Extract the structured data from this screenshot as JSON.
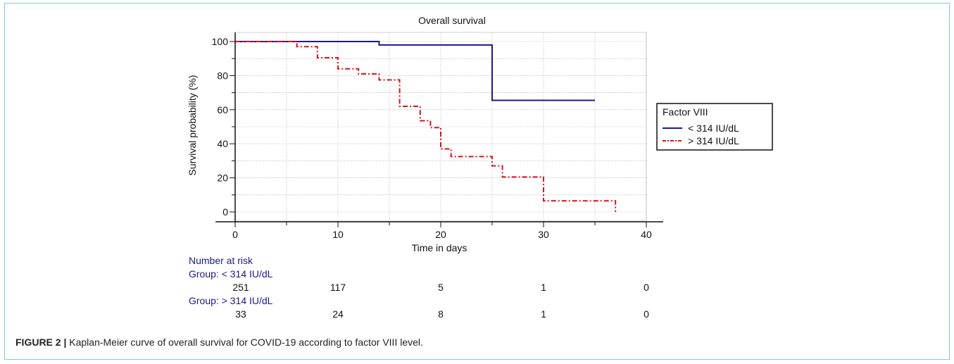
{
  "chart_data": {
    "type": "line",
    "step": true,
    "title": "Overall survival",
    "xlabel": "Time in days",
    "ylabel": "Survival probability (%)",
    "xlim": [
      0,
      40
    ],
    "ylim": [
      0,
      100
    ],
    "xticks": [
      "0",
      "10",
      "20",
      "30",
      "40"
    ],
    "yticks": [
      "0",
      "20",
      "40",
      "60",
      "80",
      "100"
    ],
    "grid": true,
    "legend": {
      "title": "Factor VIII",
      "position": "right"
    },
    "series": [
      {
        "name": "< 314 IU/dL",
        "color": "#1a1a8c",
        "style": "solid",
        "x": [
          0,
          14,
          25,
          35
        ],
        "y": [
          100,
          98,
          65.5,
          65.5
        ]
      },
      {
        "name": "> 314 IU/dL",
        "color": "#d9141b",
        "style": "dashdot",
        "x": [
          0,
          6,
          8,
          10,
          12,
          14,
          16,
          18,
          19,
          20,
          21,
          25,
          26,
          30,
          37
        ],
        "y": [
          100,
          97,
          90.5,
          84,
          81,
          77.5,
          62,
          53.5,
          49.5,
          37,
          32.5,
          27,
          20.5,
          6.5,
          0
        ]
      }
    ],
    "risk_table": {
      "title": "Number at risk",
      "times": [
        0,
        10,
        20,
        30,
        40
      ],
      "groups": [
        {
          "label": "Group: < 314 IU/dL",
          "counts": [
            "251",
            "117",
            "5",
            "1",
            "0"
          ]
        },
        {
          "label": "Group: > 314 IU/dL",
          "counts": [
            "33",
            "24",
            "8",
            "1",
            "0"
          ]
        }
      ]
    }
  },
  "caption": {
    "label": "FIGURE 2 |",
    "text": " Kaplan-Meier curve of overall survival for COVID-19 according to factor VIII level."
  }
}
